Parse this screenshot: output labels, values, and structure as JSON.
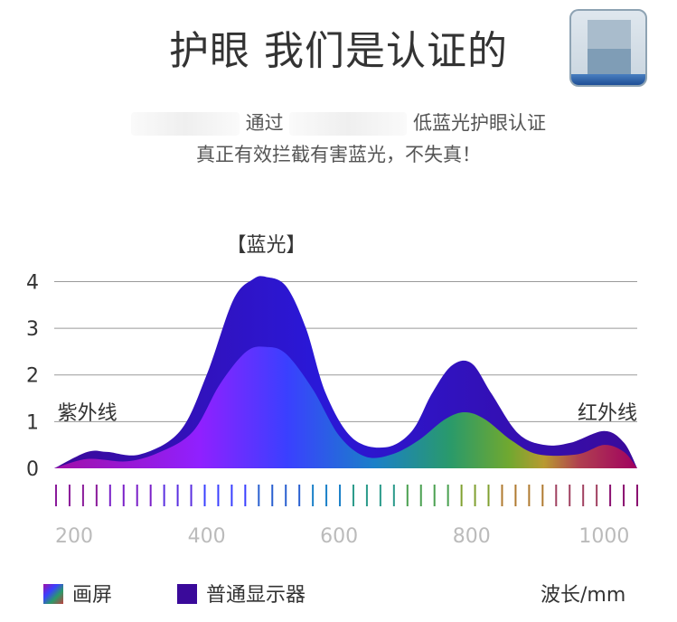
{
  "header": {
    "title": "护眼 我们是认证的",
    "line1_parts": [
      "通过",
      "低蓝光护眼认证"
    ],
    "line2": "真正有效拦截有害蓝光，不失真！"
  },
  "colors": {
    "normal_display": "#3a0a9a",
    "axis_grid": "#9a9a9a",
    "tick_label": "#bbbbbb"
  },
  "icons": {
    "badge": "certification-badge-icon"
  },
  "chart_data": {
    "type": "area",
    "yticks": [
      0,
      1,
      2,
      3,
      4
    ],
    "ylim": [
      0,
      4.3
    ],
    "xticks": [
      200,
      400,
      600,
      800,
      1000
    ],
    "xlim": [
      170,
      1050
    ],
    "xlabel": "波长/mm",
    "annotations": [
      {
        "text": "【蓝光】",
        "x": 490,
        "y": 4.8
      },
      {
        "text": "紫外线",
        "x": 220,
        "y": 1.2
      },
      {
        "text": "红外线",
        "x": 1005,
        "y": 1.2
      }
    ],
    "series": [
      {
        "name": "普通显示器",
        "x": [
          170,
          220,
          250,
          300,
          360,
          400,
          440,
          470,
          490,
          520,
          550,
          580,
          620,
          670,
          710,
          740,
          770,
          800,
          830,
          870,
          910,
          950,
          1000,
          1030,
          1050
        ],
        "values": [
          0.0,
          0.35,
          0.35,
          0.3,
          0.8,
          2.0,
          3.6,
          4.05,
          4.1,
          3.9,
          3.0,
          1.6,
          0.65,
          0.45,
          0.8,
          1.6,
          2.2,
          2.25,
          1.6,
          0.75,
          0.5,
          0.55,
          0.8,
          0.55,
          0.0
        ]
      },
      {
        "name": "画屏",
        "x": [
          170,
          220,
          280,
          330,
          380,
          420,
          460,
          490,
          520,
          560,
          600,
          640,
          680,
          720,
          760,
          790,
          820,
          860,
          900,
          960,
          1000,
          1030,
          1050
        ],
        "values": [
          0.0,
          0.2,
          0.15,
          0.35,
          0.8,
          1.8,
          2.5,
          2.6,
          2.45,
          1.7,
          0.7,
          0.25,
          0.3,
          0.6,
          1.05,
          1.2,
          1.05,
          0.6,
          0.3,
          0.3,
          0.5,
          0.35,
          0.0
        ]
      }
    ]
  }
}
